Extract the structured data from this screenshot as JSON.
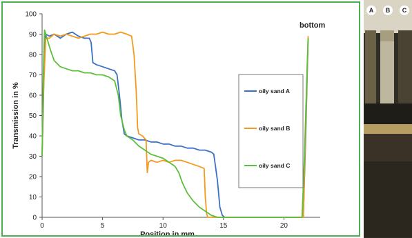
{
  "chart_data": {
    "type": "line",
    "title": "",
    "xlabel": "Position in mm",
    "ylabel": "Transmission in %",
    "xlim": [
      0,
      23
    ],
    "ylim": [
      0,
      100
    ],
    "xticks": [
      0,
      5,
      10,
      15,
      20
    ],
    "yticks": [
      0,
      10,
      20,
      30,
      40,
      50,
      60,
      70,
      80,
      90,
      100
    ],
    "grid": false,
    "legend_position": "right",
    "annotation": "bottom",
    "series": [
      {
        "name": "oily sand A",
        "color": "#3a6fc4",
        "points": [
          [
            0.0,
            30
          ],
          [
            0.1,
            55
          ],
          [
            0.2,
            85
          ],
          [
            0.3,
            90
          ],
          [
            0.6,
            89
          ],
          [
            1.0,
            90
          ],
          [
            1.5,
            88
          ],
          [
            2.0,
            90
          ],
          [
            2.5,
            91
          ],
          [
            3.0,
            89
          ],
          [
            3.5,
            88
          ],
          [
            3.9,
            88
          ],
          [
            4.05,
            86
          ],
          [
            4.2,
            76
          ],
          [
            4.5,
            75
          ],
          [
            5.0,
            74
          ],
          [
            5.5,
            73
          ],
          [
            6.0,
            72
          ],
          [
            6.2,
            70
          ],
          [
            6.4,
            60
          ],
          [
            6.6,
            48
          ],
          [
            6.8,
            41
          ],
          [
            7.0,
            40
          ],
          [
            7.5,
            39
          ],
          [
            8.0,
            38
          ],
          [
            8.5,
            38
          ],
          [
            9.0,
            37
          ],
          [
            9.5,
            37
          ],
          [
            10.0,
            36
          ],
          [
            10.5,
            36
          ],
          [
            11.0,
            35
          ],
          [
            11.5,
            35
          ],
          [
            12.0,
            34
          ],
          [
            12.5,
            34
          ],
          [
            13.0,
            33
          ],
          [
            13.5,
            33
          ],
          [
            14.0,
            32
          ],
          [
            14.2,
            31
          ],
          [
            14.5,
            18
          ],
          [
            14.7,
            5
          ],
          [
            14.9,
            1
          ],
          [
            15.1,
            0
          ],
          [
            16.0,
            0
          ],
          [
            17.0,
            0
          ],
          [
            18.0,
            0
          ],
          [
            19.0,
            0
          ],
          [
            20.0,
            0
          ],
          [
            21.0,
            0
          ],
          [
            21.6,
            0
          ],
          [
            21.8,
            40
          ],
          [
            22.0,
            88
          ]
        ]
      },
      {
        "name": "oily sand B",
        "color": "#f39a1e",
        "points": [
          [
            0.0,
            30
          ],
          [
            0.1,
            60
          ],
          [
            0.3,
            88
          ],
          [
            0.6,
            88
          ],
          [
            1.0,
            90
          ],
          [
            1.5,
            89
          ],
          [
            2.0,
            90
          ],
          [
            2.5,
            89
          ],
          [
            3.0,
            88
          ],
          [
            3.5,
            89
          ],
          [
            4.0,
            90
          ],
          [
            4.5,
            90
          ],
          [
            5.0,
            91
          ],
          [
            5.5,
            90
          ],
          [
            6.0,
            90
          ],
          [
            6.5,
            91
          ],
          [
            7.0,
            90
          ],
          [
            7.4,
            89
          ],
          [
            7.6,
            80
          ],
          [
            7.8,
            60
          ],
          [
            7.9,
            44
          ],
          [
            8.0,
            41
          ],
          [
            8.3,
            40
          ],
          [
            8.6,
            38
          ],
          [
            8.7,
            22
          ],
          [
            8.8,
            27
          ],
          [
            9.0,
            28
          ],
          [
            9.5,
            27
          ],
          [
            10.0,
            28
          ],
          [
            10.5,
            27
          ],
          [
            11.0,
            28
          ],
          [
            11.5,
            28
          ],
          [
            12.0,
            27
          ],
          [
            12.5,
            26
          ],
          [
            13.0,
            25
          ],
          [
            13.4,
            24
          ],
          [
            13.5,
            10
          ],
          [
            13.6,
            2
          ],
          [
            13.7,
            0
          ],
          [
            15.0,
            0
          ],
          [
            16.0,
            0
          ],
          [
            17.0,
            0
          ],
          [
            18.0,
            0
          ],
          [
            19.0,
            0
          ],
          [
            20.0,
            0
          ],
          [
            21.0,
            0
          ],
          [
            21.6,
            0
          ],
          [
            21.8,
            45
          ],
          [
            22.0,
            89
          ]
        ]
      },
      {
        "name": "oily sand C",
        "color": "#5cbf3a",
        "points": [
          [
            0.0,
            30
          ],
          [
            0.1,
            70
          ],
          [
            0.2,
            92
          ],
          [
            0.4,
            88
          ],
          [
            0.7,
            82
          ],
          [
            1.0,
            77
          ],
          [
            1.5,
            74
          ],
          [
            2.0,
            73
          ],
          [
            2.5,
            72
          ],
          [
            3.0,
            72
          ],
          [
            3.5,
            71
          ],
          [
            4.0,
            71
          ],
          [
            4.5,
            70
          ],
          [
            5.0,
            70
          ],
          [
            5.5,
            69
          ],
          [
            6.0,
            67
          ],
          [
            6.3,
            60
          ],
          [
            6.5,
            50
          ],
          [
            6.8,
            43
          ],
          [
            7.0,
            40
          ],
          [
            7.5,
            38
          ],
          [
            8.0,
            35
          ],
          [
            8.5,
            33
          ],
          [
            9.0,
            31
          ],
          [
            9.5,
            30
          ],
          [
            10.0,
            29
          ],
          [
            10.5,
            27
          ],
          [
            11.0,
            25
          ],
          [
            11.3,
            22
          ],
          [
            11.6,
            17
          ],
          [
            12.0,
            12
          ],
          [
            12.5,
            8
          ],
          [
            13.0,
            5
          ],
          [
            13.5,
            3
          ],
          [
            14.0,
            1
          ],
          [
            14.5,
            0
          ],
          [
            15.0,
            0
          ],
          [
            16.0,
            0
          ],
          [
            17.0,
            0
          ],
          [
            18.0,
            0
          ],
          [
            19.0,
            0
          ],
          [
            20.0,
            0
          ],
          [
            21.0,
            0
          ],
          [
            21.5,
            0
          ],
          [
            21.7,
            30
          ],
          [
            21.9,
            70
          ],
          [
            22.0,
            88
          ]
        ]
      }
    ]
  },
  "photo": {
    "tube_labels": [
      "A",
      "B",
      "C"
    ],
    "colors": {
      "background": "#3a3a32",
      "tube_light": "#c9c0a8",
      "band_dark": "#1e1d18",
      "band_tan": "#b8a67e"
    }
  }
}
